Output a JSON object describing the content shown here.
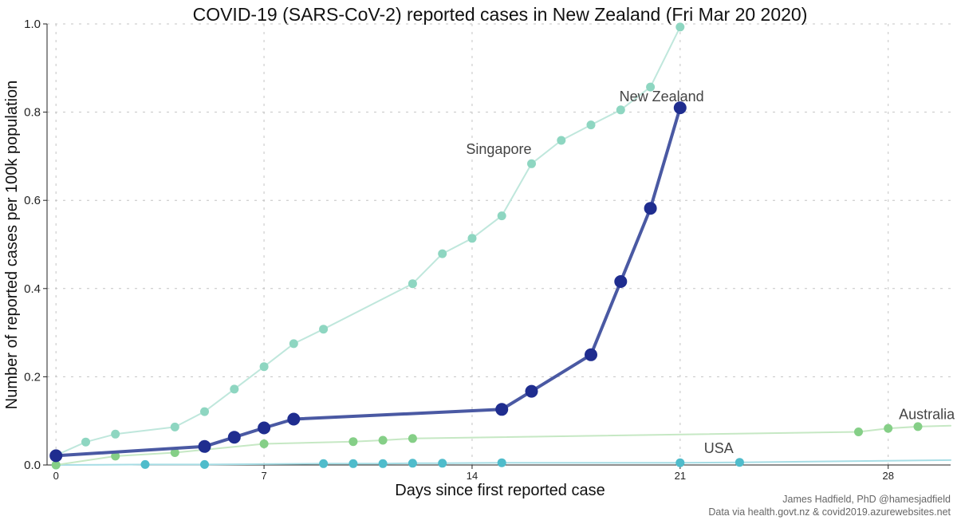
{
  "chart_data": {
    "type": "line",
    "title": "COVID-19 (SARS-CoV-2) reported cases in New Zealand (Fri Mar 20 2020)",
    "xlabel": "Days since first reported case",
    "ylabel": "Number of reported cases per 100k population",
    "xlim": [
      -0.3,
      30.1
    ],
    "ylim": [
      0,
      1.0
    ],
    "xticks": [
      0,
      7,
      14,
      21,
      28
    ],
    "yticks": [
      0.0,
      0.2,
      0.4,
      0.6,
      0.8,
      1.0
    ],
    "ytick_labels": [
      "0.0",
      "0.2",
      "0.4",
      "0.6",
      "0.8",
      "1.0"
    ],
    "grid": "dashed",
    "series": [
      {
        "name": "Singapore",
        "color": "#8ed6c1",
        "line_color": "#bfe7dc",
        "x": [
          0,
          1,
          2,
          4,
          5,
          6,
          7,
          8,
          9,
          12,
          13,
          14,
          15,
          16,
          17,
          18,
          19,
          20,
          21
        ],
        "y": [
          0.022,
          0.052,
          0.07,
          0.086,
          0.121,
          0.172,
          0.223,
          0.275,
          0.308,
          0.411,
          0.479,
          0.514,
          0.565,
          0.683,
          0.736,
          0.771,
          0.805,
          0.857,
          0.993
        ]
      },
      {
        "name": "New Zealand",
        "color": "#1f2d8f",
        "line_color": "#4a59a3",
        "x": [
          0,
          5,
          6,
          7,
          8,
          15,
          16,
          18,
          19,
          20,
          21
        ],
        "y": [
          0.021,
          0.042,
          0.063,
          0.084,
          0.104,
          0.126,
          0.167,
          0.25,
          0.416,
          0.582,
          0.81
        ]
      },
      {
        "name": "Australia",
        "color": "#85cf87",
        "line_color": "#c6e8c4",
        "x": [
          0,
          2,
          4,
          7,
          10,
          11,
          12,
          27,
          28,
          29,
          30.1
        ],
        "y": [
          0.0,
          0.02,
          0.028,
          0.048,
          0.053,
          0.056,
          0.06,
          0.075,
          0.083,
          0.087,
          0.089
        ]
      },
      {
        "name": "USA",
        "color": "#4fbccb",
        "line_color": "#a7dde5",
        "x": [
          0,
          3,
          5,
          9,
          10,
          11,
          12,
          13,
          15,
          21,
          23,
          30.1
        ],
        "y": [
          0.0,
          0.001,
          0.001,
          0.003,
          0.003,
          0.003,
          0.004,
          0.004,
          0.005,
          0.005,
          0.006,
          0.011
        ]
      }
    ],
    "annotations": [
      {
        "text": "Singapore",
        "x": 16.0,
        "y": 0.705,
        "anchor": "end"
      },
      {
        "text": "New Zealand",
        "x": 21.8,
        "y": 0.825,
        "anchor": "end"
      },
      {
        "text": "Australia",
        "x": 29.3,
        "y": 0.104,
        "anchor": "middle"
      },
      {
        "text": "USA",
        "x": 22.3,
        "y": 0.027,
        "anchor": "middle"
      }
    ],
    "credits": [
      "James Hadfield, PhD @hamesjadfield",
      "Data via health.govt.nz & covid2019.azurewebsites.net"
    ]
  }
}
